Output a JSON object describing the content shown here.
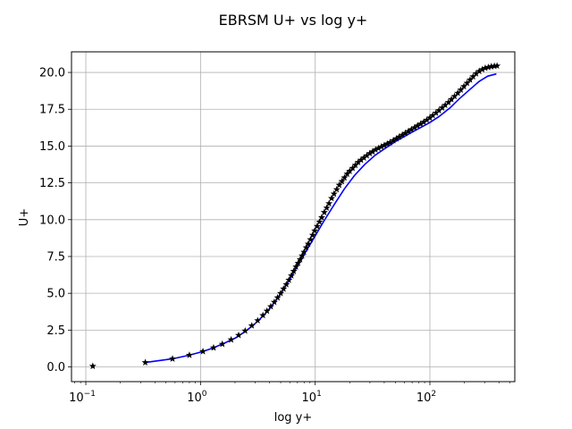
{
  "chart_data": {
    "type": "line",
    "title": "EBRSM U+ vs log y+",
    "xlabel": "log y+",
    "ylabel": "U+",
    "xscale": "log",
    "xlim": [
      0.075,
      550
    ],
    "ylim": [
      -1.0,
      21.4
    ],
    "grid": true,
    "x_ticks": [
      {
        "value": 0.1,
        "base": "10",
        "exp": "−1"
      },
      {
        "value": 1,
        "base": "10",
        "exp": "0"
      },
      {
        "value": 10,
        "base": "10",
        "exp": "1"
      },
      {
        "value": 100,
        "base": "10",
        "exp": "2"
      }
    ],
    "y_ticks": [
      {
        "value": 0,
        "label": "0.0"
      },
      {
        "value": 2.5,
        "label": "2.5"
      },
      {
        "value": 5,
        "label": "5.0"
      },
      {
        "value": 7.5,
        "label": "7.5"
      },
      {
        "value": 10,
        "label": "10.0"
      },
      {
        "value": 12.5,
        "label": "12.5"
      },
      {
        "value": 15,
        "label": "15.0"
      },
      {
        "value": 17.5,
        "label": "17.5"
      },
      {
        "value": 20,
        "label": "20.0"
      }
    ],
    "series": [
      {
        "color": "#0000ff",
        "style": "line",
        "x": [
          0.33,
          0.57,
          0.8,
          1.05,
          1.3,
          1.6,
          2.0,
          2.5,
          3.0,
          3.5,
          4.0,
          5.0,
          6.0,
          7.0,
          8.0,
          9.0,
          10.0,
          12.0,
          15.0,
          18.0,
          22.0,
          27.0,
          33.0,
          40.0,
          50.0,
          60.0,
          70.0,
          85.0,
          100.0,
          120.0,
          150.0,
          180.0,
          220.0,
          270.0,
          320.0,
          380.0
        ],
        "y": [
          0.3,
          0.55,
          0.8,
          1.05,
          1.3,
          1.6,
          1.95,
          2.45,
          2.95,
          3.45,
          3.95,
          4.95,
          5.95,
          6.85,
          7.65,
          8.3,
          8.9,
          9.95,
          11.15,
          12.1,
          13.0,
          13.75,
          14.35,
          14.8,
          15.3,
          15.65,
          15.95,
          16.3,
          16.6,
          17.0,
          17.6,
          18.2,
          18.8,
          19.4,
          19.75,
          19.9
        ]
      },
      {
        "color": "#000000",
        "style": "star",
        "x": [
          0.115,
          0.33,
          0.57,
          0.8,
          1.05,
          1.3,
          1.55,
          1.85,
          2.15,
          2.45,
          2.8,
          3.15,
          3.5,
          3.8,
          4.1,
          4.4,
          4.7,
          5.0,
          5.3,
          5.6,
          5.9,
          6.2,
          6.5,
          6.8,
          7.1,
          7.4,
          7.7,
          8.0,
          8.35,
          8.7,
          9.1,
          9.5,
          9.9,
          10.4,
          10.9,
          11.4,
          12.0,
          12.6,
          13.2,
          13.9,
          14.6,
          15.4,
          16.2,
          17.1,
          18.0,
          19.0,
          20.0,
          21.2,
          22.4,
          23.7,
          25.1,
          26.6,
          28.2,
          29.9,
          31.7,
          33.6,
          35.6,
          37.7,
          40.0,
          42.5,
          45.0,
          48.0,
          51.0,
          54.0,
          57.5,
          61.0,
          65.0,
          69.0,
          73.5,
          78.0,
          83.0,
          88.5,
          94.0,
          100.0,
          106.0,
          113.0,
          120.0,
          128.0,
          136.0,
          145.0,
          154.0,
          164.0,
          175.0,
          186.0,
          198.0,
          211.0,
          224.0,
          238.0,
          253.0,
          269.0,
          286.0,
          304.0,
          323.0,
          343.0,
          365.0,
          385.0
        ],
        "y": [
          0.05,
          0.3,
          0.55,
          0.8,
          1.05,
          1.3,
          1.55,
          1.85,
          2.15,
          2.45,
          2.8,
          3.15,
          3.5,
          3.8,
          4.1,
          4.4,
          4.7,
          5.0,
          5.3,
          5.6,
          5.9,
          6.2,
          6.5,
          6.8,
          7.05,
          7.3,
          7.55,
          7.8,
          8.1,
          8.35,
          8.65,
          8.95,
          9.25,
          9.55,
          9.85,
          10.15,
          10.5,
          10.8,
          11.1,
          11.45,
          11.75,
          12.05,
          12.35,
          12.6,
          12.85,
          13.1,
          13.3,
          13.5,
          13.7,
          13.9,
          14.05,
          14.2,
          14.35,
          14.5,
          14.62,
          14.75,
          14.85,
          14.95,
          15.05,
          15.15,
          15.25,
          15.38,
          15.5,
          15.62,
          15.75,
          15.87,
          16.0,
          16.12,
          16.25,
          16.38,
          16.5,
          16.63,
          16.77,
          16.92,
          17.08,
          17.25,
          17.42,
          17.6,
          17.78,
          17.97,
          18.17,
          18.38,
          18.6,
          18.82,
          19.05,
          19.28,
          19.5,
          19.72,
          19.92,
          20.08,
          20.2,
          20.3,
          20.35,
          20.4,
          20.43,
          20.45
        ]
      }
    ]
  }
}
